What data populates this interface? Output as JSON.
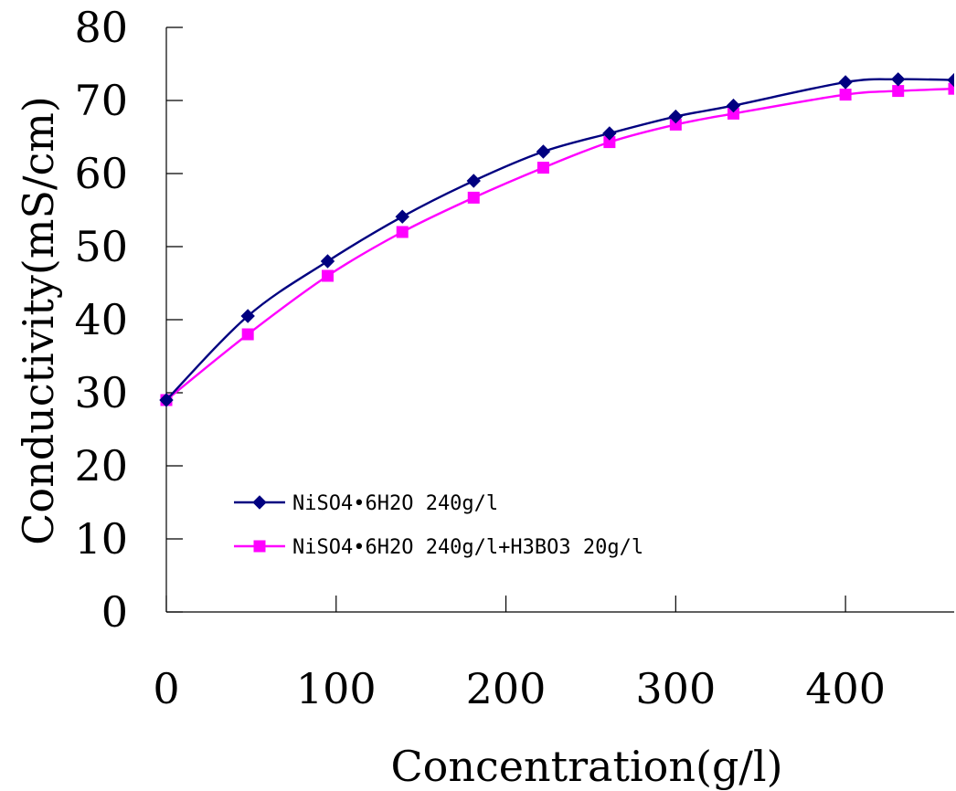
{
  "chart_data": {
    "type": "line",
    "xlabel": "Concentration(g/l)",
    "ylabel": "Conductivity(mS/cm)",
    "xlim": [
      0,
      464
    ],
    "ylim": [
      0,
      80
    ],
    "xticks": [
      0,
      100,
      200,
      300,
      400
    ],
    "yticks": [
      0,
      10,
      20,
      30,
      40,
      50,
      60,
      70,
      80
    ],
    "grid": false,
    "legend_position": "lower-left",
    "series": [
      {
        "name": "NiSO4•6H2O 240g/l",
        "color": "#000080",
        "marker": "diamond",
        "x": [
          0,
          48,
          95,
          139,
          181,
          222,
          261,
          300,
          334,
          400,
          431,
          464
        ],
        "y": [
          29,
          40.5,
          48,
          54.1,
          59,
          63,
          65.5,
          67.8,
          69.3,
          72.5,
          72.9,
          72.8
        ]
      },
      {
        "name": "NiSO4•6H2O 240g/l+H3BO3 20g/l",
        "color": "#FF00FF",
        "marker": "square",
        "x": [
          0,
          48,
          95,
          139,
          181,
          222,
          261,
          300,
          334,
          400,
          431,
          464
        ],
        "y": [
          29,
          38,
          46,
          52,
          56.7,
          60.8,
          64.3,
          66.7,
          68.2,
          70.8,
          71.3,
          71.6
        ]
      }
    ]
  }
}
